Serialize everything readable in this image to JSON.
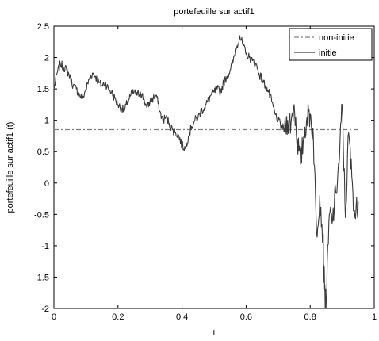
{
  "chart_data": {
    "type": "line",
    "title": "portefeuille sur actif1",
    "xlabel": "t",
    "ylabel": "portefeuille sur actif1  (t)",
    "xlim": [
      0,
      1
    ],
    "ylim": [
      -2,
      2.5
    ],
    "xticks": [
      "0",
      "0.2",
      "0.4",
      "0.6",
      "0.8",
      "1"
    ],
    "yticks": [
      "2.5",
      "2",
      "1.5",
      "1",
      "0.5",
      "0",
      "-0.5",
      "-1",
      "-1.5",
      "-2"
    ],
    "grid": false,
    "legend_position": "top-right",
    "series": [
      {
        "name": "non-initie",
        "style": "dash-dot",
        "color": "#7f7f7f",
        "x": [
          0,
          0.95
        ],
        "y": [
          0.85,
          0.85
        ]
      },
      {
        "name": "initie",
        "style": "solid",
        "color": "#3a3a3a",
        "x": [
          0,
          0.01,
          0.02,
          0.03,
          0.04,
          0.05,
          0.06,
          0.07,
          0.08,
          0.09,
          0.1,
          0.11,
          0.12,
          0.13,
          0.14,
          0.15,
          0.16,
          0.17,
          0.18,
          0.19,
          0.2,
          0.21,
          0.22,
          0.23,
          0.24,
          0.25,
          0.26,
          0.27,
          0.28,
          0.29,
          0.3,
          0.31,
          0.32,
          0.33,
          0.34,
          0.35,
          0.36,
          0.37,
          0.38,
          0.39,
          0.4,
          0.41,
          0.42,
          0.43,
          0.44,
          0.45,
          0.46,
          0.47,
          0.48,
          0.49,
          0.5,
          0.51,
          0.52,
          0.53,
          0.54,
          0.55,
          0.56,
          0.57,
          0.58,
          0.59,
          0.6,
          0.61,
          0.62,
          0.63,
          0.64,
          0.65,
          0.66,
          0.67,
          0.68,
          0.69,
          0.7,
          0.71,
          0.72,
          0.73,
          0.74,
          0.75,
          0.76,
          0.77,
          0.78,
          0.79,
          0.8,
          0.81,
          0.82,
          0.83,
          0.84,
          0.845,
          0.85,
          0.86,
          0.87,
          0.88,
          0.89,
          0.9,
          0.91,
          0.92,
          0.93,
          0.94,
          0.95
        ],
        "y": [
          1.5,
          1.75,
          1.9,
          1.85,
          1.8,
          1.7,
          1.55,
          1.5,
          1.4,
          1.35,
          1.5,
          1.65,
          1.75,
          1.7,
          1.6,
          1.55,
          1.6,
          1.5,
          1.45,
          1.35,
          1.25,
          1.2,
          1.15,
          1.3,
          1.4,
          1.45,
          1.4,
          1.45,
          1.35,
          1.2,
          1.3,
          1.35,
          1.4,
          1.15,
          1.0,
          1.05,
          0.95,
          0.85,
          0.8,
          0.75,
          0.6,
          0.55,
          0.75,
          0.9,
          1.0,
          1.05,
          1.15,
          1.2,
          1.3,
          1.4,
          1.45,
          1.5,
          1.45,
          1.6,
          1.7,
          1.8,
          1.95,
          2.15,
          2.35,
          2.2,
          2.05,
          2.0,
          1.95,
          1.9,
          1.75,
          1.65,
          1.55,
          1.45,
          1.3,
          1.1,
          1.0,
          0.9,
          0.85,
          1.0,
          0.95,
          1.25,
          0.7,
          0.3,
          0.75,
          1.05,
          1.1,
          0.75,
          -0.8,
          -0.2,
          -0.85,
          -1.7,
          -1.9,
          -0.5,
          -0.6,
          -0.15,
          0.3,
          1.25,
          -0.55,
          0.8,
          0.1,
          -0.55,
          -0.3
        ]
      }
    ]
  }
}
